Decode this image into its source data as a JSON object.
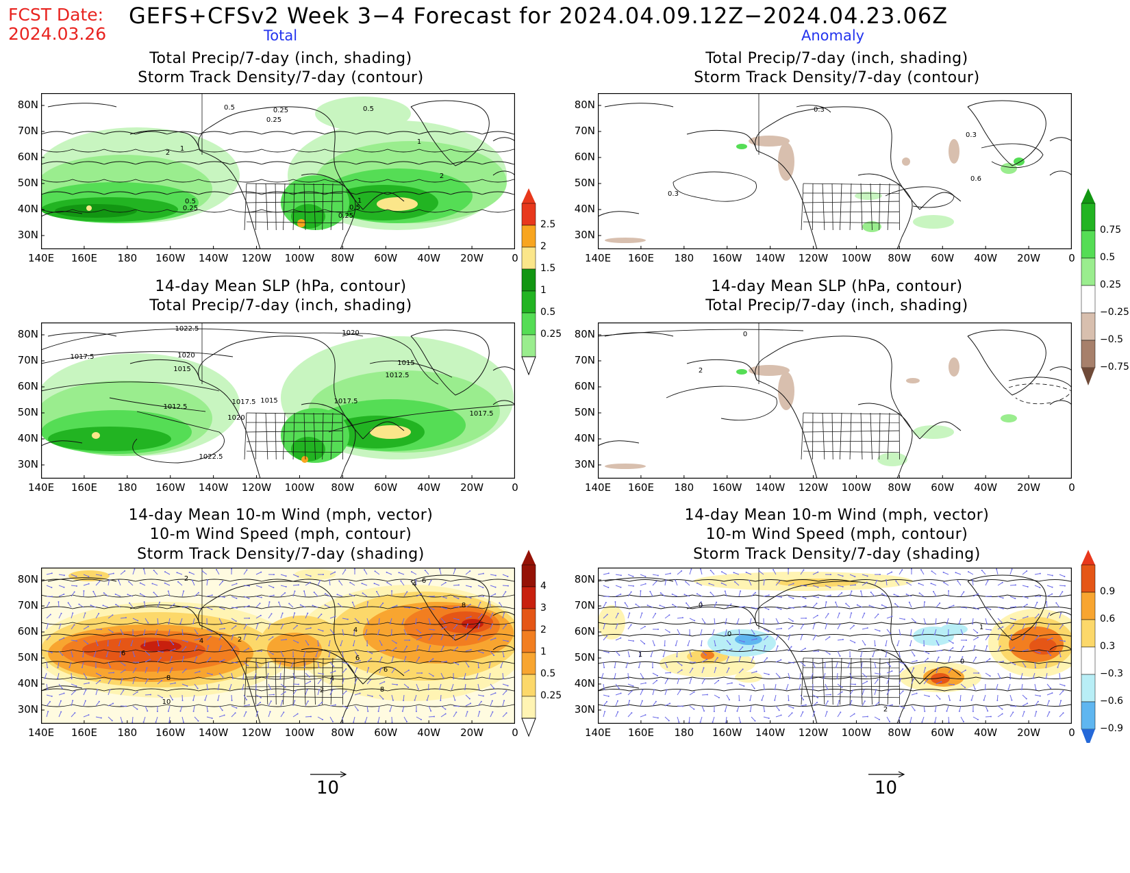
{
  "header": {
    "fcst_label": "FCST Date:",
    "fcst_date": "2024.03.26",
    "title": "GEFS+CFSv2 Week 3−4 Forecast for 2024.04.09.12Z−2024.04.23.06Z",
    "col_total": "Total",
    "col_anomaly": "Anomaly"
  },
  "panels": {
    "p1": {
      "l1": "Total Precip/7-day (inch, shading)",
      "l2": "Storm Track Density/7-day (contour)"
    },
    "p2": {
      "l1": "Total Precip/7-day (inch, shading)",
      "l2": "Storm Track Density/7-day (contour)"
    },
    "p3": {
      "l1": "14-day Mean SLP (hPa, contour)",
      "l2": "Total Precip/7-day (inch, shading)"
    },
    "p4": {
      "l1": "14-day Mean SLP (hPa, contour)",
      "l2": "Total Precip/7-day (inch, shading)"
    },
    "p5": {
      "l1": "14-day Mean 10-m Wind (mph, vector)",
      "l2": "10-m Wind Speed (mph, contour)",
      "l3": "Storm Track Density/7-day (shading)"
    },
    "p6": {
      "l1": "14-day Mean 10-m Wind (mph, vector)",
      "l2": "10-m Wind Speed (mph, contour)",
      "l3": "Storm Track Density/7-day (shading)"
    }
  },
  "axes": {
    "lat": [
      "80N",
      "70N",
      "60N",
      "50N",
      "40N",
      "30N"
    ],
    "lon": [
      "140E",
      "160E",
      "180",
      "160W",
      "140W",
      "120W",
      "100W",
      "80W",
      "60W",
      "40W",
      "20W",
      "0"
    ]
  },
  "colorbars": {
    "precip_total": [
      "2.5",
      "2",
      "1.5",
      "1",
      "0.5",
      "0.25"
    ],
    "precip_anom": [
      "0.75",
      "0.5",
      "0.25",
      "−0.25",
      "−0.5",
      "−0.75"
    ],
    "storm_total": [
      "4",
      "3",
      "2",
      "1",
      "0.5",
      "0.25"
    ],
    "storm_anom": [
      "0.9",
      "0.6",
      "0.3",
      "−0.3",
      "−0.6",
      "−0.9"
    ]
  },
  "contour_labels": {
    "p1": [
      "0.5",
      "0.25",
      "0.25",
      "0.5",
      "1",
      "2",
      "1",
      "0.5",
      "0.25",
      "1",
      "0.5",
      "0.25",
      "2"
    ],
    "p2": [
      "0.3",
      "0.3",
      "0.6",
      "0.3"
    ],
    "p3": [
      "1022.5",
      "1020",
      "1017.5",
      "1020",
      "1015",
      "1015",
      "1012.5",
      "1012.5",
      "1017.5",
      "1015",
      "1017.5",
      "1020",
      "1017.5",
      "1022.5"
    ],
    "p4": [
      "0",
      "2"
    ],
    "p5": [
      "2",
      "4",
      "6",
      "8",
      "2",
      "4",
      "6",
      "8",
      "4",
      "6",
      "8",
      "10",
      "6",
      "4",
      "2"
    ],
    "p6": [
      "0",
      "1",
      "2",
      "0",
      "1",
      "0"
    ]
  },
  "vector_reference": {
    "left": "10",
    "right": "10"
  },
  "colors": {
    "fcst": "#e8231f",
    "col_head": "#2233ee",
    "precip": [
      "#c8f5c0",
      "#9aed8e",
      "#55dd55",
      "#22b422",
      "#129612",
      "#fbe68a",
      "#f8a51f",
      "#e8381c"
    ],
    "dry": [
      "#d8bfae",
      "#a7806b",
      "#6f4a38"
    ],
    "storm": [
      "#fff4b3",
      "#fcd86a",
      "#f8a530",
      "#f27e20",
      "#e55616",
      "#c8200e",
      "#951206"
    ],
    "anom_storm_neg": [
      "#b8eef6",
      "#5fb6f0",
      "#2468d8"
    ],
    "vector": "#6a6ae8"
  }
}
